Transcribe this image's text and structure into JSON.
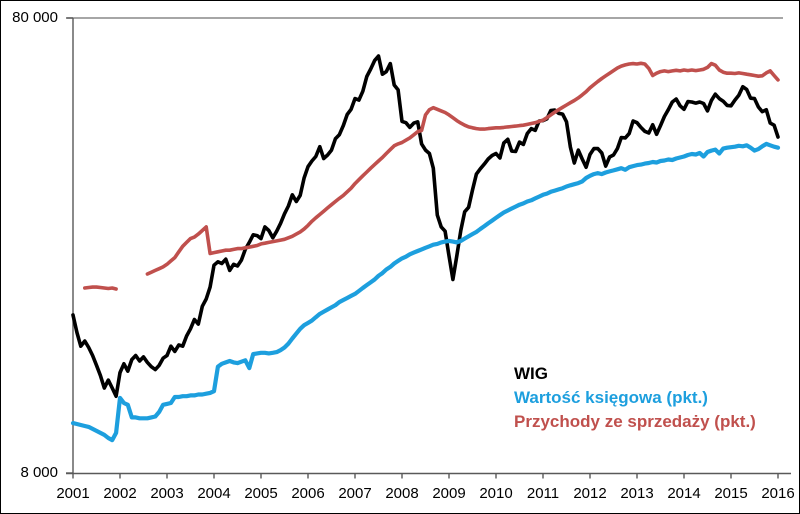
{
  "chart": {
    "y_axis": {
      "top_label": "80 000",
      "bottom_label": "8 000"
    },
    "axis_color": "#595959",
    "gridline_color": "#898989",
    "legend": [
      {
        "label": "WIG",
        "color": "#000000"
      },
      {
        "label": "Wartość księgowa (pkt.)",
        "color": "#1D9FDE"
      },
      {
        "label": "Przychody ze sprzedaży (pkt.)",
        "color": "#C0504D"
      }
    ]
  },
  "chart_data": {
    "type": "line",
    "title": "",
    "xlabel": "",
    "ylabel": "",
    "y_scale": "log",
    "ylim": [
      8000,
      80000
    ],
    "y_tick_labels": [
      "8 000",
      "80 000"
    ],
    "x_start_year": 2001,
    "x_end_year": 2016,
    "samples_per_year": 12,
    "x_tick_labels": [
      "2001",
      "2002",
      "2003",
      "2004",
      "2005",
      "2006",
      "2007",
      "2008",
      "2009",
      "2010",
      "2011",
      "2012",
      "2013",
      "2014",
      "2015",
      "2016"
    ],
    "legend_position": "inside-bottom-right",
    "grid": "top-border-only",
    "series": [
      {
        "name": "WIG",
        "color": "#000000",
        "stroke_width": 3.6,
        "values": [
          17800,
          16300,
          15200,
          15600,
          15100,
          14500,
          13800,
          13100,
          12300,
          12800,
          12300,
          11800,
          13300,
          13900,
          13400,
          14200,
          14500,
          14100,
          14400,
          14000,
          13700,
          13500,
          13800,
          14300,
          14500,
          15200,
          14800,
          15300,
          15200,
          16000,
          16600,
          17400,
          17000,
          18600,
          19300,
          20500,
          22900,
          23300,
          23100,
          23600,
          22300,
          23000,
          22800,
          23500,
          24800,
          25700,
          26700,
          26600,
          26200,
          27800,
          27300,
          26300,
          27200,
          28300,
          29700,
          30900,
          32700,
          31600,
          32600,
          35600,
          37700,
          38800,
          39700,
          41700,
          39300,
          40000,
          41000,
          43400,
          44300,
          46400,
          49100,
          50400,
          53200,
          52800,
          55200,
          59500,
          61800,
          64500,
          66000,
          60200,
          61000,
          63500,
          57000,
          55600,
          47400,
          47100,
          46000,
          47000,
          47300,
          42300,
          41000,
          40300,
          37400,
          29500,
          27800,
          27200,
          24000,
          21300,
          24000,
          27300,
          30000,
          30700,
          33500,
          36300,
          37300,
          38200,
          39200,
          39900,
          40300,
          39400,
          42500,
          43300,
          40800,
          40700,
          42700,
          42200,
          44600,
          45700,
          45300,
          47500,
          47600,
          48000,
          50100,
          50200,
          49400,
          49200,
          47300,
          41600,
          38400,
          41000,
          39200,
          37600,
          40100,
          41300,
          41300,
          40400,
          37800,
          39600,
          40000,
          41300,
          43700,
          43600,
          44600,
          47500,
          47100,
          46000,
          45100,
          44700,
          46600,
          44400,
          46400,
          48600,
          50300,
          52300,
          53100,
          51300,
          50400,
          52400,
          52300,
          52000,
          52300,
          51900,
          50000,
          52700,
          54400,
          53200,
          52500,
          51400,
          51300,
          52800,
          54100,
          56500,
          55700,
          53300,
          53200,
          51000,
          49800,
          50300,
          47000,
          46500,
          43800
        ]
      },
      {
        "name": "Wartość księgowa (pkt.)",
        "color": "#1D9FDE",
        "stroke_width": 4.2,
        "values": [
          10300,
          10250,
          10200,
          10150,
          10100,
          10000,
          9900,
          9800,
          9700,
          9550,
          9450,
          9800,
          11700,
          11400,
          11300,
          10600,
          10600,
          10550,
          10550,
          10550,
          10600,
          10650,
          10900,
          11300,
          11350,
          11400,
          11750,
          11750,
          11800,
          11800,
          11850,
          11850,
          11900,
          11900,
          11950,
          12000,
          12100,
          13700,
          13900,
          14000,
          14100,
          14000,
          13950,
          14050,
          14150,
          13600,
          14600,
          14650,
          14700,
          14700,
          14650,
          14700,
          14750,
          14900,
          15100,
          15400,
          15800,
          16200,
          16600,
          16900,
          17100,
          17300,
          17600,
          17900,
          18100,
          18300,
          18500,
          18700,
          19000,
          19200,
          19400,
          19600,
          19800,
          20100,
          20400,
          20700,
          21000,
          21300,
          21700,
          22000,
          22400,
          22700,
          23100,
          23400,
          23700,
          23900,
          24200,
          24400,
          24600,
          24800,
          25000,
          25200,
          25400,
          25500,
          25700,
          25800,
          25900,
          25800,
          25700,
          25900,
          26200,
          26500,
          26800,
          27100,
          27500,
          27900,
          28300,
          28700,
          29100,
          29500,
          29900,
          30200,
          30500,
          30800,
          31100,
          31300,
          31600,
          31800,
          32100,
          32400,
          32700,
          32900,
          33200,
          33400,
          33600,
          33800,
          34100,
          34300,
          34500,
          34700,
          35000,
          35600,
          36000,
          36300,
          36500,
          36300,
          36600,
          36800,
          37000,
          37200,
          37400,
          37100,
          37600,
          37800,
          38000,
          38100,
          38300,
          38400,
          38600,
          38500,
          38800,
          38900,
          39100,
          39000,
          39300,
          39500,
          39700,
          40000,
          40200,
          40100,
          40400,
          39700,
          40600,
          40900,
          41100,
          40300,
          41300,
          41500,
          41600,
          41700,
          41900,
          41800,
          42000,
          41500,
          40900,
          41200,
          41800,
          42300,
          42000,
          41700,
          41500
        ]
      },
      {
        "name": "Przychody ze sprzedaży (pkt.)",
        "color": "#C0504D",
        "stroke_width": 3.6,
        "values": [
          null,
          null,
          null,
          20400,
          20450,
          20500,
          20500,
          20450,
          20400,
          20350,
          20400,
          20300,
          null,
          null,
          null,
          null,
          null,
          null,
          null,
          21900,
          22100,
          22300,
          22500,
          22700,
          23000,
          23400,
          23800,
          24500,
          25200,
          25700,
          26200,
          26400,
          26800,
          27300,
          27800,
          24300,
          24400,
          24500,
          24600,
          24700,
          24700,
          24800,
          24900,
          24900,
          25000,
          25100,
          25200,
          25300,
          25500,
          25600,
          25700,
          25800,
          25900,
          26000,
          26100,
          26300,
          26500,
          26800,
          27100,
          27500,
          28000,
          28600,
          29100,
          29600,
          30100,
          30600,
          31100,
          31600,
          32100,
          32600,
          33200,
          33800,
          34600,
          35300,
          36000,
          36700,
          37400,
          38100,
          38800,
          39500,
          40300,
          41100,
          41900,
          42300,
          42600,
          43100,
          43600,
          44300,
          45000,
          45300,
          49000,
          50300,
          50800,
          50400,
          50000,
          49600,
          49000,
          48300,
          47600,
          47000,
          46500,
          46100,
          45900,
          45700,
          45600,
          45600,
          45700,
          45800,
          45900,
          45900,
          46000,
          46100,
          46200,
          46300,
          46400,
          46500,
          46700,
          46900,
          47100,
          47400,
          47700,
          48300,
          49000,
          49700,
          50300,
          50900,
          51500,
          52100,
          52700,
          53400,
          54200,
          55100,
          56200,
          57100,
          58000,
          58900,
          59700,
          60500,
          61300,
          62100,
          62700,
          63100,
          63400,
          63500,
          63400,
          63600,
          63400,
          62000,
          59800,
          60500,
          61000,
          61200,
          61000,
          61200,
          61400,
          61200,
          61500,
          61300,
          61500,
          61300,
          61500,
          61700,
          62300,
          63500,
          63000,
          61500,
          60800,
          60500,
          60500,
          60400,
          60600,
          60400,
          60200,
          60000,
          59800,
          59600,
          59700,
          60600,
          61200,
          59800,
          58500
        ]
      }
    ]
  }
}
